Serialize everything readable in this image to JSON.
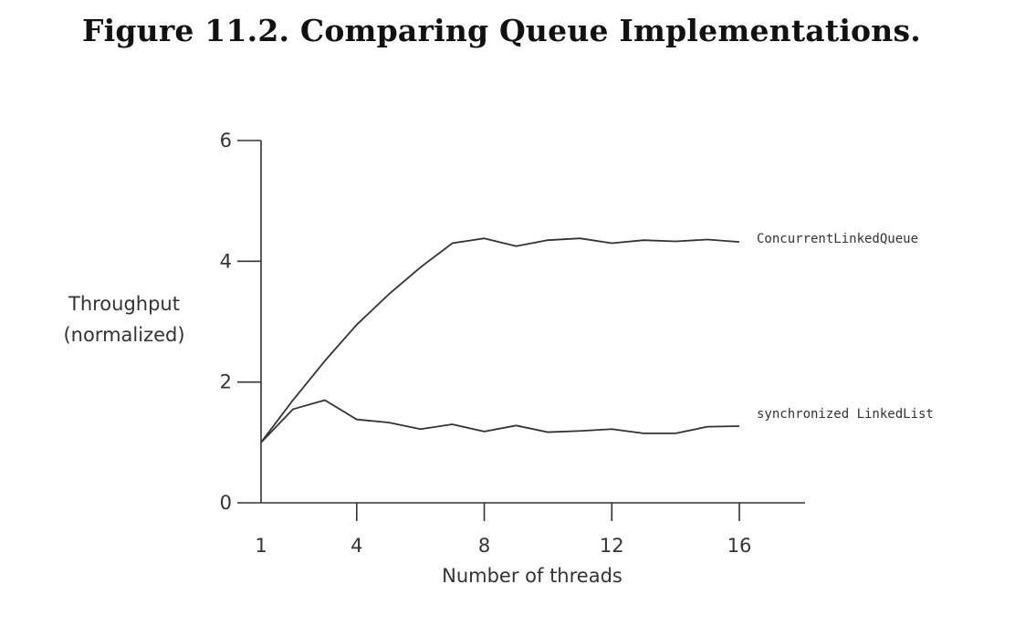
{
  "title": "Figure 11.2. Comparing Queue Implementations.",
  "chart_data": {
    "type": "line",
    "xlabel": "Number of threads",
    "ylabel_lines": [
      "Throughput",
      "(normalized)"
    ],
    "x_ticks": [
      1,
      4,
      8,
      12,
      16
    ],
    "y_ticks": [
      0,
      2,
      4,
      6
    ],
    "xlim": [
      1,
      18
    ],
    "ylim": [
      0,
      6
    ],
    "grid": false,
    "legend": "inline-right",
    "x": [
      1,
      2,
      3,
      4,
      5,
      6,
      7,
      8,
      9,
      10,
      11,
      12,
      13,
      14,
      15,
      16
    ],
    "series": [
      {
        "name": "ConcurrentLinkedQueue",
        "values": [
          1.0,
          1.7,
          2.35,
          2.95,
          3.45,
          3.9,
          4.3,
          4.38,
          4.25,
          4.35,
          4.38,
          4.3,
          4.35,
          4.33,
          4.36,
          4.32
        ]
      },
      {
        "name": "synchronized LinkedList",
        "values": [
          1.0,
          1.55,
          1.7,
          1.38,
          1.33,
          1.22,
          1.3,
          1.18,
          1.28,
          1.17,
          1.19,
          1.22,
          1.15,
          1.15,
          1.26,
          1.27
        ]
      }
    ]
  }
}
